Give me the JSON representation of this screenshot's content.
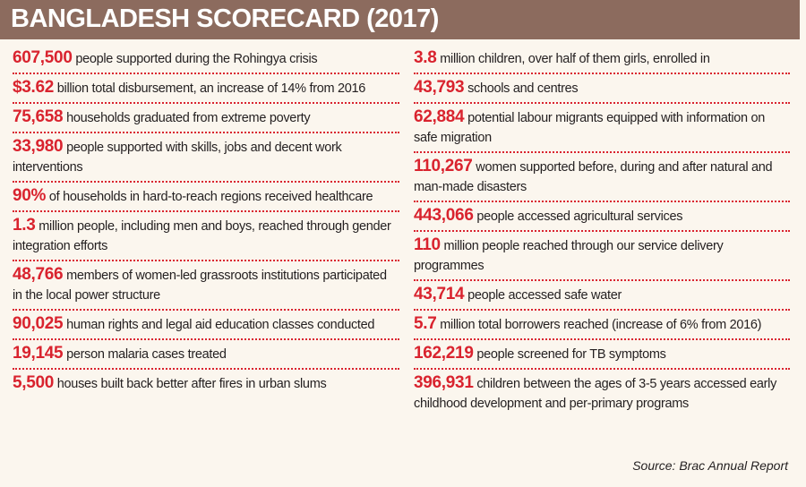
{
  "header": {
    "title": "BANGLADESH SCORECARD (2017)"
  },
  "left": [
    {
      "figure": "607,500",
      "text": "people supported during the Rohingya crisis"
    },
    {
      "figure": "$3.62",
      "text": "billion total disbursement, an increase of 14% from 2016"
    },
    {
      "figure": "75,658",
      "text": "households graduated from extreme poverty"
    },
    {
      "figure": "33,980",
      "text": "people supported with skills, jobs and decent work interventions"
    },
    {
      "figure": "90%",
      "text": "of households in hard-to-reach regions received healthcare"
    },
    {
      "figure": "1.3",
      "text": "million people, including men and boys, reached through gender integration efforts"
    },
    {
      "figure": "48,766",
      "text": "members of women-led grassroots institutions participated in the local power structure"
    },
    {
      "figure": "90,025",
      "text": "human rights and legal aid education classes conducted"
    },
    {
      "figure": "19,145",
      "text": "person malaria cases treated"
    },
    {
      "figure": "5,500",
      "text": "houses built back better after fires in urban slums"
    }
  ],
  "right": [
    {
      "figure": "3.8",
      "text": "million children, over half of them girls, enrolled in"
    },
    {
      "figure": "43,793",
      "text": "schools and centres"
    },
    {
      "figure": "62,884",
      "text": "potential labour migrants equipped with information on safe migration"
    },
    {
      "figure": "110,267",
      "text": "women supported before, during and after natural and man-made disasters"
    },
    {
      "figure": "443,066",
      "text": "people accessed agricultural services"
    },
    {
      "figure": "110",
      "text": "million people reached through our service delivery programmes"
    },
    {
      "figure": "43,714",
      "text": "people accessed safe water"
    },
    {
      "figure": "5.7",
      "text": "million total borrowers reached (increase of 6% from 2016)"
    },
    {
      "figure": "162,219",
      "text": "people screened for TB symptoms"
    },
    {
      "figure": "396,931",
      "text": "children between the ages of 3-5 years accessed early childhood development and per-primary programs"
    }
  ],
  "source": "Source: Brac Annual Report"
}
